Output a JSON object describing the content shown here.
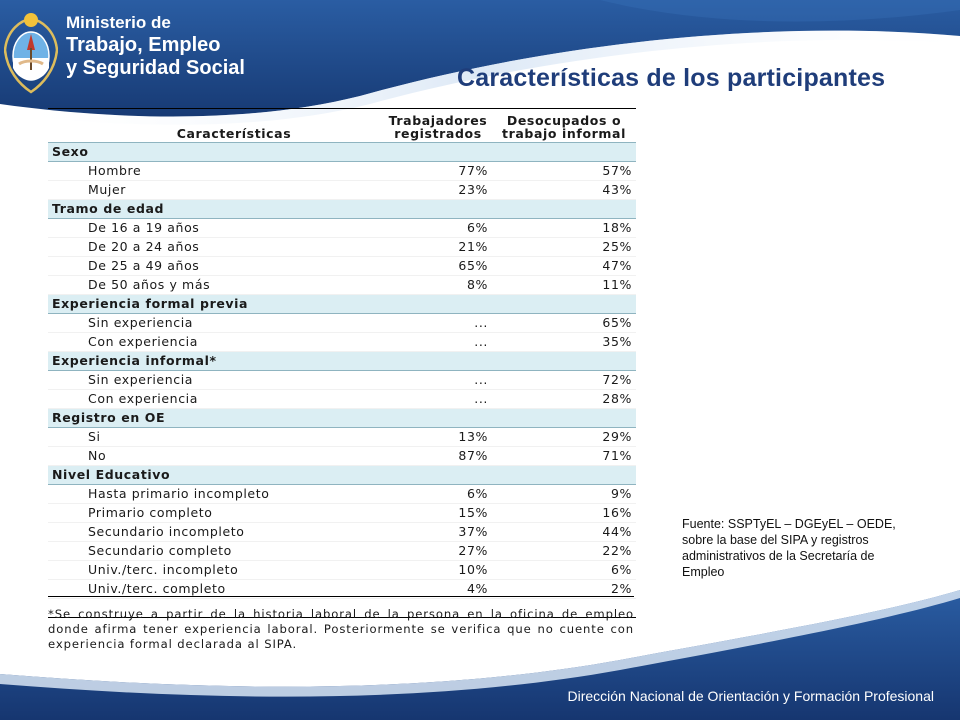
{
  "header": {
    "ministry_line1": "Ministerio de",
    "ministry_line2": "Trabajo, Empleo",
    "ministry_line3": "y Seguridad Social"
  },
  "title": "Características de los participantes",
  "table": {
    "col1": "Características",
    "col2_line1": "Trabajadores",
    "col2_line2": "registrados",
    "col3_line1": "Desocupados o",
    "col3_line2": "trabajo informal",
    "groups": [
      {
        "name": "Sexo",
        "rows": [
          {
            "label": "Hombre",
            "v1": "77%",
            "v2": "57%"
          },
          {
            "label": "Mujer",
            "v1": "23%",
            "v2": "43%"
          }
        ]
      },
      {
        "name": "Tramo de edad",
        "rows": [
          {
            "label": "De 16 a 19 años",
            "v1": "6%",
            "v2": "18%"
          },
          {
            "label": "De 20 a 24 años",
            "v1": "21%",
            "v2": "25%"
          },
          {
            "label": "De 25 a 49 años",
            "v1": "65%",
            "v2": "47%"
          },
          {
            "label": "De 50 años y más",
            "v1": "8%",
            "v2": "11%"
          }
        ]
      },
      {
        "name": "Experiencia formal previa",
        "rows": [
          {
            "label": "Sin experiencia",
            "v1": "...",
            "v2": "65%"
          },
          {
            "label": "Con experiencia",
            "v1": "...",
            "v2": "35%"
          }
        ]
      },
      {
        "name": "Experiencia informal*",
        "rows": [
          {
            "label": "Sin experiencia",
            "v1": "...",
            "v2": "72%"
          },
          {
            "label": "Con experiencia",
            "v1": "...",
            "v2": "28%"
          }
        ]
      },
      {
        "name": "Registro en OE",
        "rows": [
          {
            "label": "Si",
            "v1": "13%",
            "v2": "29%"
          },
          {
            "label": "No",
            "v1": "87%",
            "v2": "71%"
          }
        ]
      },
      {
        "name": "Nivel Educativo",
        "rows": [
          {
            "label": "Hasta primario incompleto",
            "v1": "6%",
            "v2": "9%"
          },
          {
            "label": "Primario completo",
            "v1": "15%",
            "v2": "16%"
          },
          {
            "label": "Secundario incompleto",
            "v1": "37%",
            "v2": "44%"
          },
          {
            "label": "Secundario completo",
            "v1": "27%",
            "v2": "22%"
          },
          {
            "label": "Univ./terc. incompleto",
            "v1": "10%",
            "v2": "6%"
          },
          {
            "label": "Univ./terc. completo",
            "v1": "4%",
            "v2": "2%"
          }
        ]
      }
    ]
  },
  "footnote": "*Se construye a partir de la historia laboral de la persona en la oficina de empleo donde afirma tener experiencia laboral. Posteriormente se verifica que no cuente con experiencia formal declarada al SIPA.",
  "source": "Fuente: SSPTyEL – DGEyEL – OEDE, sobre la base del SIPA y registros administrativos de la Secretaría de Empleo",
  "footer": "Dirección Nacional de Orientación y Formación Profesional",
  "colors": {
    "title": "#1f3d7a",
    "band": "#1c3f7a",
    "category_fill": "#dbeef3"
  }
}
